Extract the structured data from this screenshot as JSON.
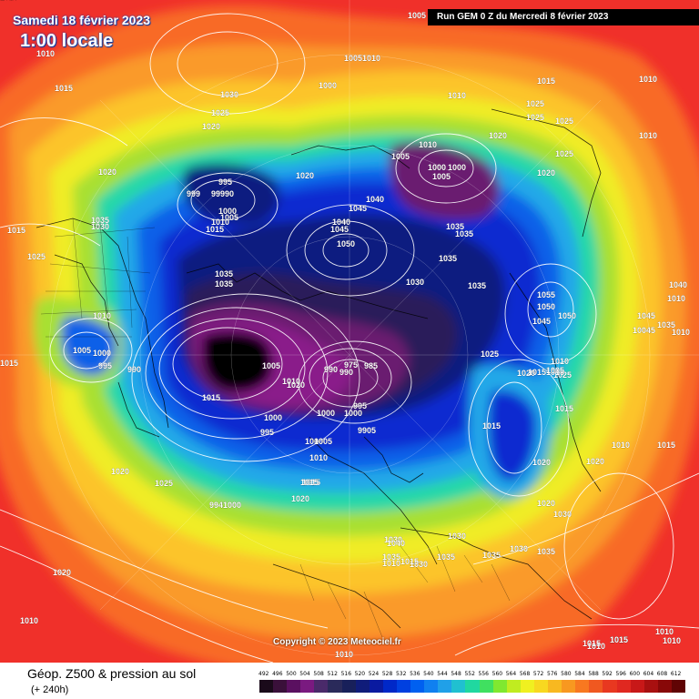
{
  "header": {
    "date": "Samedi 18 février 2023",
    "local_time": "1:00 locale",
    "run": "Run GEM 0 Z du Mercredi 8 février 2023"
  },
  "footer": {
    "title": "Géop. Z500 & pression au sol",
    "subtitle": "(+ 240h)",
    "copyright": "Copyright © 2023 Meteociel.fr"
  },
  "legend": {
    "values": [
      "492",
      "496",
      "500",
      "504",
      "508",
      "512",
      "516",
      "520",
      "524",
      "528",
      "532",
      "536",
      "540",
      "544",
      "548",
      "552",
      "556",
      "560",
      "564",
      "568",
      "572",
      "576",
      "580",
      "584",
      "588",
      "592",
      "596",
      "600",
      "604",
      "608",
      "612"
    ],
    "colors": [
      "#1a0a1a",
      "#3a103a",
      "#5a1060",
      "#7a1a80",
      "#4a2a6a",
      "#2a2a5a",
      "#18205a",
      "#101c7a",
      "#0a1aa0",
      "#0028c8",
      "#0040e0",
      "#0060f0",
      "#1080f0",
      "#20a0e8",
      "#20c0d0",
      "#20d8a0",
      "#40e060",
      "#80e830",
      "#c0ec20",
      "#f0f020",
      "#f8d820",
      "#f8b820",
      "#f89820",
      "#f87820",
      "#f05820",
      "#e83820",
      "#e02820",
      "#c81818",
      "#a81010",
      "#880808",
      "#600404"
    ]
  },
  "map": {
    "colors": {
      "c612": "#f0302a",
      "c588": "#f86a28",
      "c576": "#fa9a2a",
      "c568": "#fcc42c",
      "c560": "#f0ec28",
      "c552": "#a8e030",
      "c544": "#28d8a8",
      "c536": "#20a8e8",
      "c528": "#1060e8",
      "c520": "#0a2ad0",
      "c512": "#101a80",
      "c504": "#2a1a5a",
      "c500": "#6a1a70",
      "c496": "#8a1a8a",
      "c492": "#050505"
    },
    "labels": [
      {
        "t": "1005"
      },
      {
        "t": "1010"
      },
      {
        "t": "1015"
      },
      {
        "t": "1030"
      },
      {
        "t": "1025"
      },
      {
        "t": "1020"
      },
      {
        "t": "10051010"
      },
      {
        "t": "1000"
      },
      {
        "t": "1010"
      },
      {
        "t": "1010"
      },
      {
        "t": "1020"
      },
      {
        "t": "1025"
      },
      {
        "t": "1025"
      },
      {
        "t": "1025"
      },
      {
        "t": "1010"
      },
      {
        "t": "1010"
      },
      {
        "t": "1005"
      },
      {
        "t": "1000"
      },
      {
        "t": "1000"
      },
      {
        "t": "1005"
      },
      {
        "t": "1020"
      },
      {
        "t": "1025"
      },
      {
        "t": "1015"
      },
      {
        "t": "1020"
      },
      {
        "t": "995"
      },
      {
        "t": "999"
      },
      {
        "t": "99990"
      },
      {
        "t": "1000"
      },
      {
        "t": "1005"
      },
      {
        "t": "1010"
      },
      {
        "t": "1015"
      },
      {
        "t": "1020"
      },
      {
        "t": "1035"
      },
      {
        "t": "1030"
      },
      {
        "t": "1015"
      },
      {
        "t": "1025"
      },
      {
        "t": "1040"
      },
      {
        "t": "1045"
      },
      {
        "t": "1040"
      },
      {
        "t": "1045"
      },
      {
        "t": "1050"
      },
      {
        "t": "1035"
      },
      {
        "t": "1035"
      },
      {
        "t": "1035"
      },
      {
        "t": "1035"
      },
      {
        "t": "1030"
      },
      {
        "t": "1035"
      },
      {
        "t": "1035"
      },
      {
        "t": "1055"
      },
      {
        "t": "1050"
      },
      {
        "t": "1050"
      },
      {
        "t": "1045"
      },
      {
        "t": "1045"
      },
      {
        "t": "1040"
      },
      {
        "t": "10045"
      },
      {
        "t": "1035"
      },
      {
        "t": "1010"
      },
      {
        "t": "1010"
      },
      {
        "t": "1015"
      },
      {
        "t": "1010"
      },
      {
        "t": "1005"
      },
      {
        "t": "1000"
      },
      {
        "t": "995"
      },
      {
        "t": "990"
      },
      {
        "t": "1005"
      },
      {
        "t": "1010"
      },
      {
        "t": "1015"
      },
      {
        "t": "1020"
      },
      {
        "t": "990"
      },
      {
        "t": "975"
      },
      {
        "t": "985"
      },
      {
        "t": "990"
      },
      {
        "t": "995"
      },
      {
        "t": "1000"
      },
      {
        "t": "1000"
      },
      {
        "t": "1000"
      },
      {
        "t": "995"
      },
      {
        "t": "1000"
      },
      {
        "t": "9905"
      },
      {
        "t": "1005"
      },
      {
        "t": "1010"
      },
      {
        "t": "1015"
      },
      {
        "t": "1015"
      },
      {
        "t": "1020"
      },
      {
        "t": "1025"
      },
      {
        "t": "1030"
      },
      {
        "t": "1025"
      },
      {
        "t": "1015"
      },
      {
        "t": "1010"
      },
      {
        "t": "1015"
      },
      {
        "t": "1020"
      },
      {
        "t": "1020"
      },
      {
        "t": "1030"
      },
      {
        "t": "1020"
      },
      {
        "t": "1030"
      },
      {
        "t": "1035"
      },
      {
        "t": "1030"
      },
      {
        "t": "1035"
      },
      {
        "t": "1040"
      },
      {
        "t": "1035"
      },
      {
        "t": "1030"
      },
      {
        "t": "1035"
      },
      {
        "t": "1020"
      },
      {
        "t": "1025"
      },
      {
        "t": "9941000"
      },
      {
        "t": "1015"
      },
      {
        "t": "1020"
      },
      {
        "t": "1015"
      },
      {
        "t": "1010"
      },
      {
        "t": "1015"
      },
      {
        "t": "1010"
      },
      {
        "t": "1010"
      },
      {
        "t": "1015"
      },
      {
        "t": "1010"
      },
      {
        "t": "1015"
      },
      {
        "t": "1010"
      },
      {
        "t": "1010"
      },
      {
        "t": "10151015"
      },
      {
        "t": "1020"
      },
      {
        "t": "1005"
      },
      {
        "t": "1010"
      },
      {
        "t": "1025"
      },
      {
        "t": "1030"
      }
    ]
  }
}
